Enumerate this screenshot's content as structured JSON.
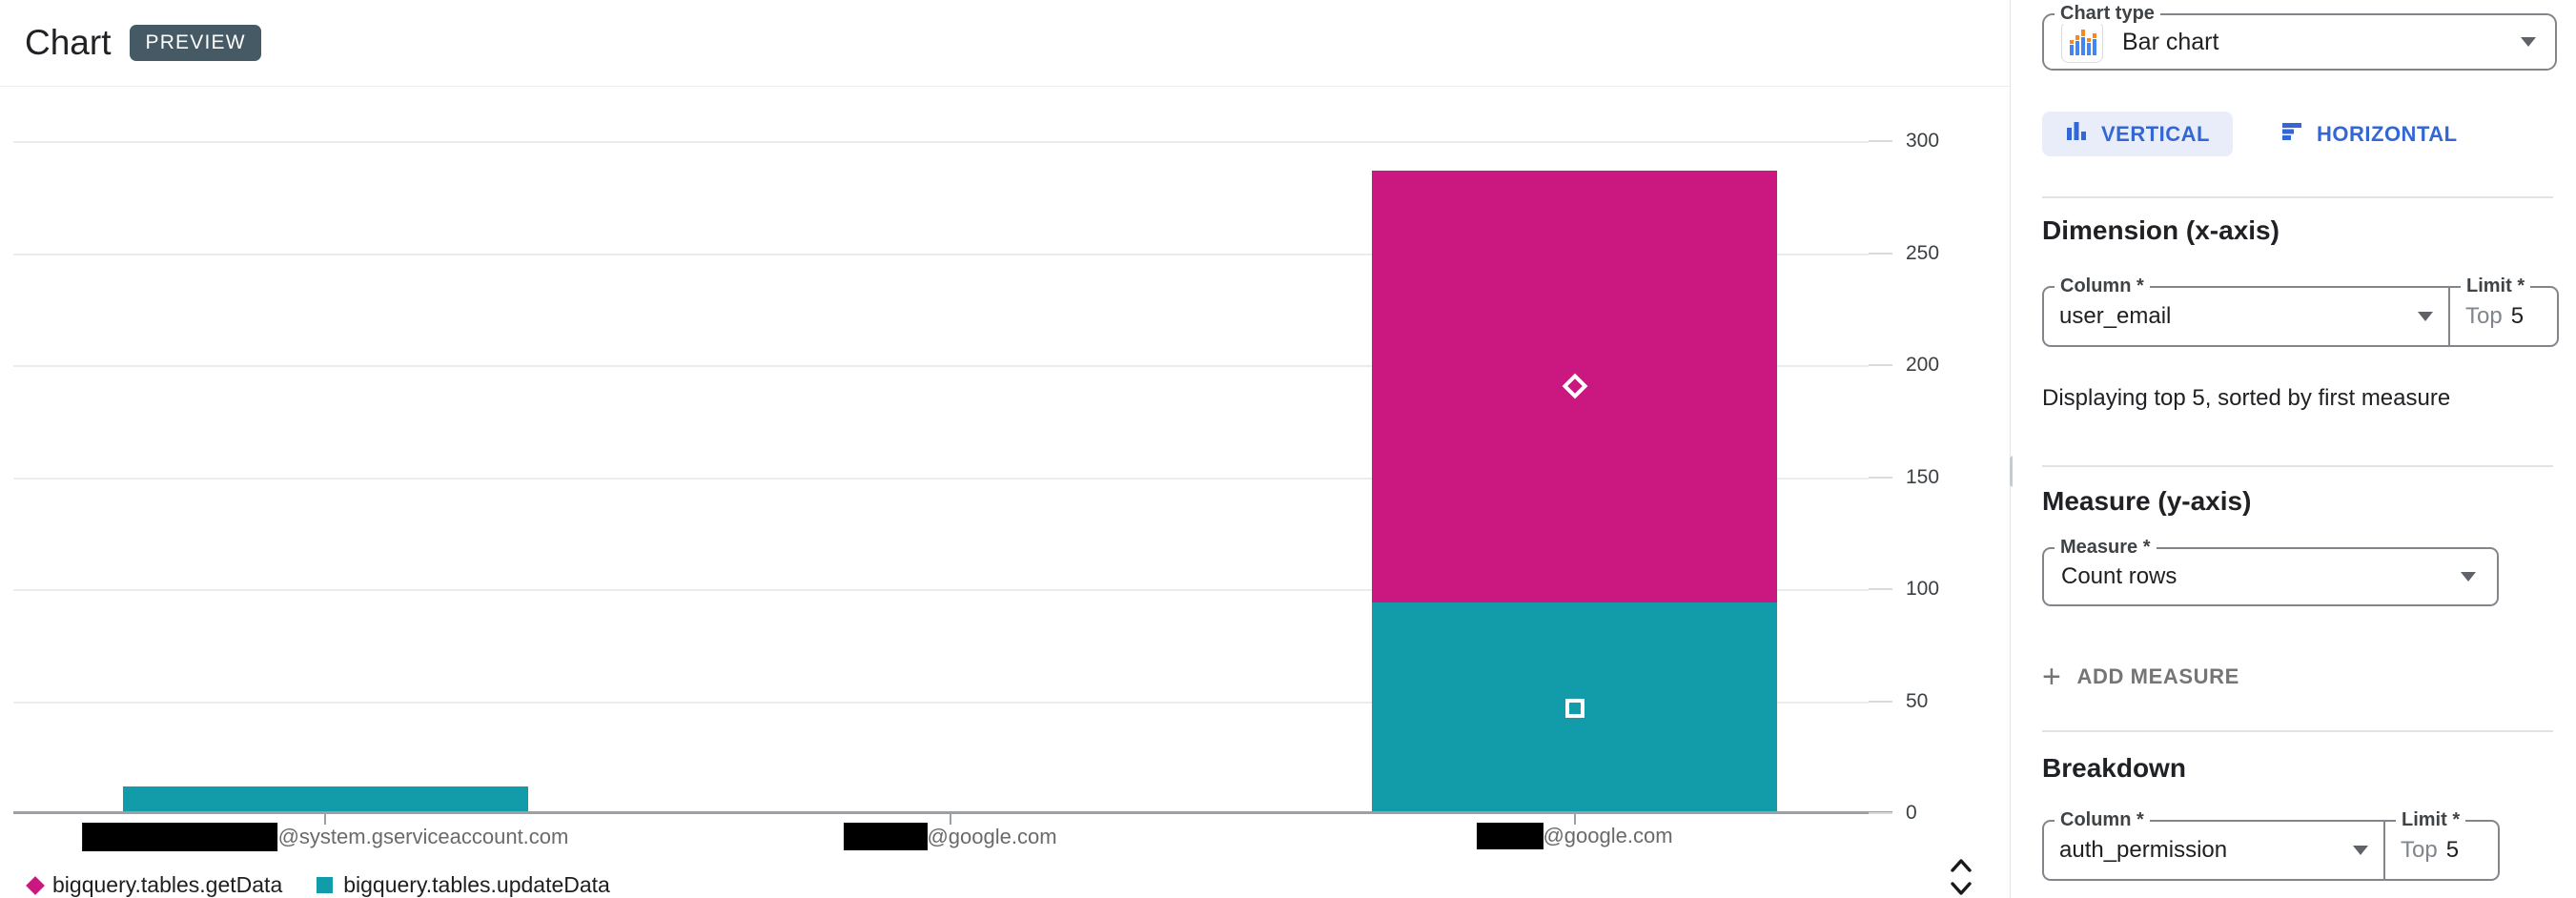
{
  "header": {
    "title": "Chart",
    "badge": "PREVIEW"
  },
  "chart_data": {
    "type": "bar",
    "stacked": true,
    "orientation": "vertical",
    "grid": true,
    "yaxis_side": "right",
    "legend_position": "bottom-left",
    "ylim": [
      0,
      300
    ],
    "ytick_step": 50,
    "yticks": [
      0,
      50,
      100,
      150,
      200,
      250,
      300
    ],
    "categories": [
      {
        "redacted_prefix": true,
        "visible_text": "@system.gserviceaccount.com",
        "redact_w": 205,
        "redact_h": 30
      },
      {
        "redacted_prefix": true,
        "visible_text": "@google.com",
        "redact_w": 88,
        "redact_h": 29
      },
      {
        "redacted_prefix": true,
        "visible_text": "@google.com",
        "redact_w": 70,
        "redact_h": 28
      }
    ],
    "series": [
      {
        "name": "bigquery.tables.getData",
        "color": "#CB1881",
        "marker": "diamond",
        "values": [
          0,
          0,
          193
        ]
      },
      {
        "name": "bigquery.tables.updateData",
        "color": "#129BA9",
        "marker": "square",
        "values": [
          12,
          1,
          94
        ]
      }
    ]
  },
  "panel": {
    "chart_type": {
      "label": "Chart type",
      "value": "Bar chart"
    },
    "orientation_toggle": {
      "vertical": "VERTICAL",
      "horizontal": "HORIZONTAL",
      "selected": "vertical"
    },
    "dimension": {
      "heading": "Dimension (x-axis)",
      "column_label": "Column *",
      "column_value": "user_email",
      "limit_label": "Limit *",
      "limit_prefix": "Top",
      "limit_value": "5",
      "note": "Displaying top 5, sorted by first measure"
    },
    "measure": {
      "heading": "Measure (y-axis)",
      "field_label": "Measure *",
      "field_value": "Count rows",
      "add_button": "ADD MEASURE"
    },
    "breakdown": {
      "heading": "Breakdown",
      "column_label": "Column *",
      "column_value": "auth_permission",
      "limit_label": "Limit *",
      "limit_prefix": "Top",
      "limit_value": "5"
    }
  },
  "colors": {
    "series_getdata": "#CB1881",
    "series_updatedata": "#129BA9",
    "accent_blue": "#3367D6",
    "toggle_selected_bg": "#E9EDF9",
    "badge_bg": "#455A64",
    "gridline": "#ECECEC",
    "axis_line": "#9AA0A6"
  }
}
